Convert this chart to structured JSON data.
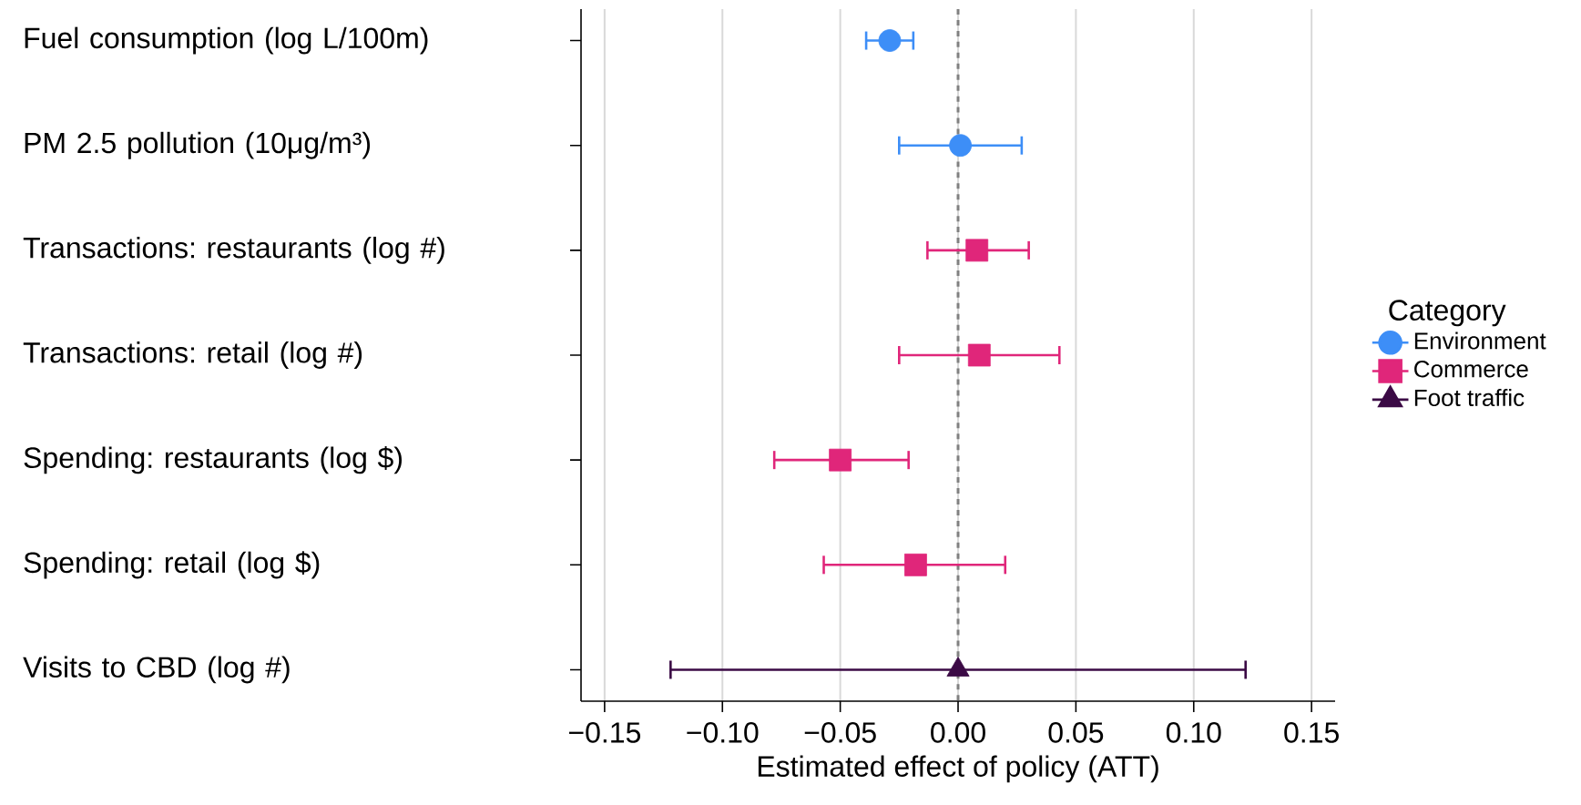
{
  "chart_data": {
    "type": "scatter",
    "orientation": "horizontal",
    "categories": [
      "Fuel consumption (log L/100m)",
      "PM 2.5 pollution (10μg/m³)",
      "Transactions: restaurants (log #)",
      "Transactions: retail (log #)",
      "Spending: restaurants (log $)",
      "Spending: retail (log $)",
      "Visits to CBD (log #)"
    ],
    "series": [
      {
        "name": "Environment",
        "color": "#3d8ef7",
        "marker": "circle",
        "values": [
          -0.029,
          0.001,
          null,
          null,
          null,
          null,
          null
        ],
        "errors": [
          [
            -0.039,
            -0.019
          ],
          [
            -0.025,
            0.027
          ],
          null,
          null,
          null,
          null,
          null
        ]
      },
      {
        "name": "Commerce",
        "color": "#e0267a",
        "marker": "square",
        "values": [
          null,
          null,
          0.008,
          0.009,
          -0.05,
          -0.018,
          null
        ],
        "errors": [
          null,
          null,
          [
            -0.013,
            0.03
          ],
          [
            -0.025,
            0.043
          ],
          [
            -0.078,
            -0.021
          ],
          [
            -0.057,
            0.02
          ],
          null
        ]
      },
      {
        "name": "Foot traffic",
        "color": "#3b0a45",
        "marker": "triangle",
        "values": [
          null,
          null,
          null,
          null,
          null,
          null,
          0.0
        ],
        "errors": [
          null,
          null,
          null,
          null,
          null,
          null,
          [
            -0.122,
            0.122
          ]
        ]
      }
    ],
    "xlabel": "Estimated effect of policy (ATT)",
    "xlim": [
      -0.16,
      0.16
    ],
    "xticks": [
      {
        "value": -0.15,
        "label": "−0.15"
      },
      {
        "value": -0.1,
        "label": "−0.10"
      },
      {
        "value": -0.05,
        "label": "−0.05"
      },
      {
        "value": 0,
        "label": "0.00"
      },
      {
        "value": 0.05,
        "label": "0.05"
      },
      {
        "value": 0.1,
        "label": "0.10"
      },
      {
        "value": 0.15,
        "label": "0.15"
      }
    ],
    "ref_lines": [
      {
        "axis": "x",
        "value": 0,
        "color": "#808080",
        "line_style": "dashed"
      }
    ],
    "grid": "x",
    "legend": "right",
    "legend_title": "Category"
  }
}
